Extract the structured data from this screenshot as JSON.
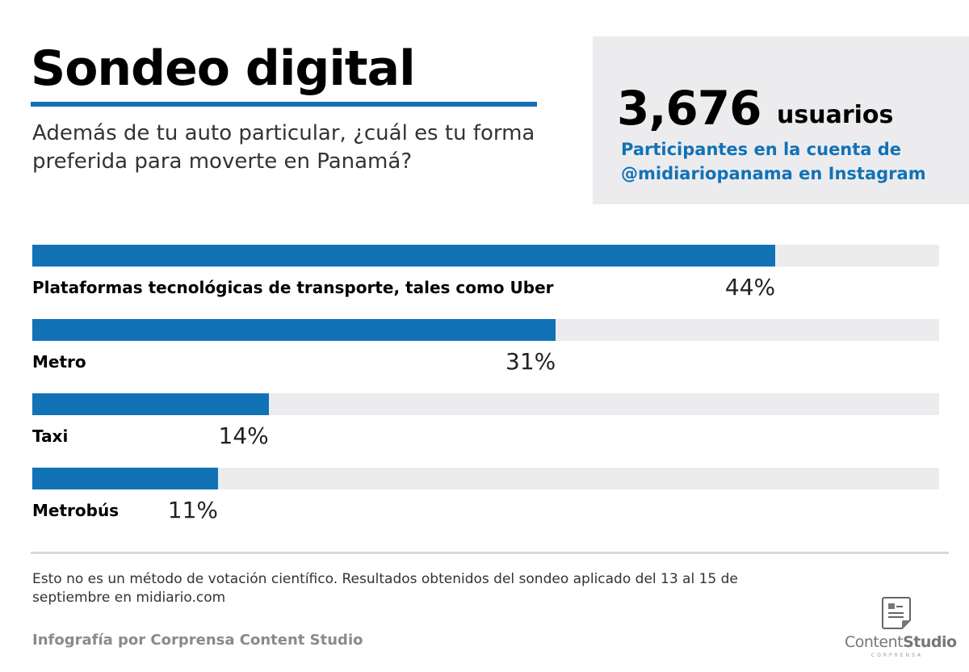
{
  "header": {
    "title": "Sondeo digital",
    "question": "Además de tu auto particular, ¿cuál es tu forma preferida para moverte en Panamá?"
  },
  "stat": {
    "number": "3,676",
    "unit": "usuarios",
    "description_line1": "Participantes en la cuenta de",
    "description_line2": "@midiariopanama en Instagram"
  },
  "colors": {
    "accent": "#1272b6",
    "track": "#ececee",
    "stat_box": "#ececee"
  },
  "chart_data": {
    "type": "bar",
    "orientation": "horizontal",
    "categories": [
      "Plataformas tecnológicas de transporte, tales como Uber",
      "Metro",
      "Taxi",
      "Metrobús"
    ],
    "values": [
      44,
      31,
      14,
      11
    ],
    "value_labels": [
      "44%",
      "31%",
      "14%",
      "11%"
    ],
    "unit": "%"
  },
  "footer": {
    "note": "Esto no es un método de votación científico. Resultados obtenidos del sondeo aplicado del 13 al 15 de septiembre en midiario.com",
    "credit": "Infografía por Corprensa Content Studio",
    "logo_text_light": "Content",
    "logo_text_bold": "Studio",
    "logo_sub": "CORPRENSA"
  }
}
